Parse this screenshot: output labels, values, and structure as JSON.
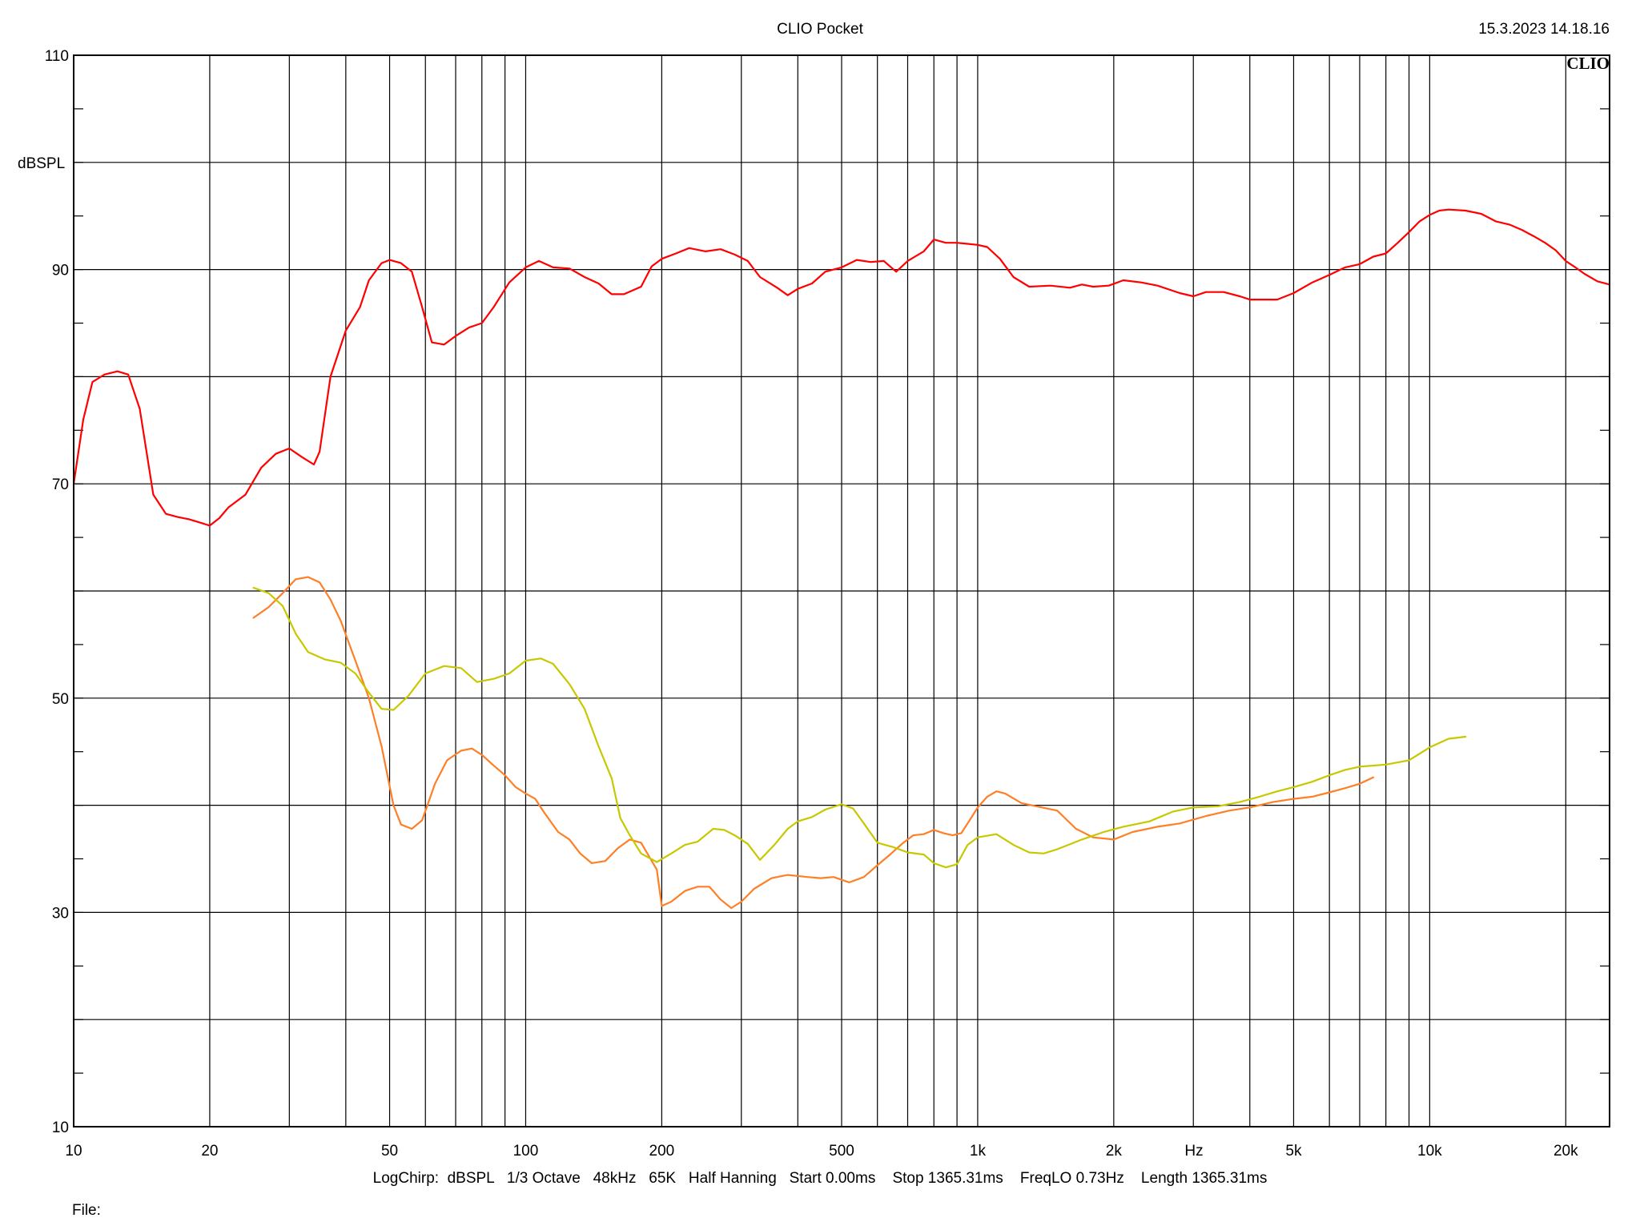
{
  "header": {
    "title": "CLIO Pocket",
    "timestamp": "15.3.2023 14.18.16",
    "brand": "CLIO"
  },
  "footer": {
    "settings": "LogChirp:  dBSPL   1/3 Octave   48kHz   65K   Half Hanning   Start 0.00ms    Stop 1365.31ms    FreqLO 0.73Hz    Length 1365.31ms",
    "file_label": "File:"
  },
  "chart_data": {
    "type": "line",
    "title": "CLIO Pocket",
    "xlabel": "Hz",
    "ylabel": "dBSPL",
    "x_scale": "log",
    "xlim": [
      10,
      25000
    ],
    "ylim": [
      10,
      110
    ],
    "x_ticks": [
      {
        "value": 10,
        "label": "10"
      },
      {
        "value": 20,
        "label": "20"
      },
      {
        "value": 50,
        "label": "50"
      },
      {
        "value": 100,
        "label": "100"
      },
      {
        "value": 200,
        "label": "200"
      },
      {
        "value": 500,
        "label": "500"
      },
      {
        "value": 1000,
        "label": "1k"
      },
      {
        "value": 2000,
        "label": "2k"
      },
      {
        "value": 5000,
        "label": "5k"
      },
      {
        "value": 10000,
        "label": "10k"
      },
      {
        "value": 20000,
        "label": "20k"
      }
    ],
    "y_ticks": [
      {
        "value": 10,
        "label": "10"
      },
      {
        "value": 30,
        "label": "30"
      },
      {
        "value": 50,
        "label": "50"
      },
      {
        "value": 70,
        "label": "70"
      },
      {
        "value": 90,
        "label": "90"
      },
      {
        "value": 110,
        "label": "110"
      }
    ],
    "grid": true,
    "legend": "none",
    "series": [
      {
        "color": "#ff0000",
        "points": [
          [
            10,
            70
          ],
          [
            10.5,
            76
          ],
          [
            11,
            79.5
          ],
          [
            11.7,
            80.2
          ],
          [
            12.5,
            80.5
          ],
          [
            13.2,
            80.2
          ],
          [
            14,
            77
          ],
          [
            15,
            69
          ],
          [
            16,
            67.2
          ],
          [
            17,
            66.9
          ],
          [
            18,
            66.7
          ],
          [
            19,
            66.4
          ],
          [
            20,
            66.1
          ],
          [
            21,
            66.8
          ],
          [
            22,
            67.8
          ],
          [
            24,
            69
          ],
          [
            26,
            71.5
          ],
          [
            28,
            72.8
          ],
          [
            30,
            73.3
          ],
          [
            32,
            72.5
          ],
          [
            34,
            71.8
          ],
          [
            35,
            73
          ],
          [
            37,
            80
          ],
          [
            40,
            84.3
          ],
          [
            43,
            86.5
          ],
          [
            45,
            89
          ],
          [
            48,
            90.6
          ],
          [
            50,
            90.9
          ],
          [
            53,
            90.6
          ],
          [
            56,
            89.8
          ],
          [
            59,
            86.5
          ],
          [
            62,
            83.2
          ],
          [
            66,
            83
          ],
          [
            70,
            83.8
          ],
          [
            75,
            84.6
          ],
          [
            80,
            85
          ],
          [
            85,
            86.5
          ],
          [
            92,
            88.8
          ],
          [
            100,
            90.2
          ],
          [
            107,
            90.8
          ],
          [
            115,
            90.2
          ],
          [
            125,
            90.1
          ],
          [
            135,
            89.3
          ],
          [
            145,
            88.7
          ],
          [
            155,
            87.7
          ],
          [
            165,
            87.7
          ],
          [
            180,
            88.4
          ],
          [
            190,
            90.3
          ],
          [
            200,
            91
          ],
          [
            215,
            91.5
          ],
          [
            230,
            92
          ],
          [
            250,
            91.7
          ],
          [
            270,
            91.9
          ],
          [
            290,
            91.4
          ],
          [
            310,
            90.8
          ],
          [
            330,
            89.3
          ],
          [
            360,
            88.3
          ],
          [
            380,
            87.6
          ],
          [
            400,
            88.2
          ],
          [
            430,
            88.7
          ],
          [
            460,
            89.8
          ],
          [
            500,
            90.2
          ],
          [
            540,
            90.9
          ],
          [
            580,
            90.7
          ],
          [
            620,
            90.8
          ],
          [
            660,
            89.8
          ],
          [
            700,
            90.8
          ],
          [
            760,
            91.7
          ],
          [
            800,
            92.8
          ],
          [
            850,
            92.5
          ],
          [
            900,
            92.5
          ],
          [
            950,
            92.4
          ],
          [
            1000,
            92.3
          ],
          [
            1050,
            92.1
          ],
          [
            1120,
            91
          ],
          [
            1200,
            89.3
          ],
          [
            1300,
            88.4
          ],
          [
            1450,
            88.5
          ],
          [
            1600,
            88.3
          ],
          [
            1700,
            88.6
          ],
          [
            1800,
            88.4
          ],
          [
            1950,
            88.5
          ],
          [
            2100,
            89
          ],
          [
            2300,
            88.8
          ],
          [
            2500,
            88.5
          ],
          [
            2800,
            87.8
          ],
          [
            3000,
            87.5
          ],
          [
            3200,
            87.9
          ],
          [
            3500,
            87.9
          ],
          [
            3800,
            87.5
          ],
          [
            4000,
            87.2
          ],
          [
            4300,
            87.2
          ],
          [
            4600,
            87.2
          ],
          [
            5000,
            87.8
          ],
          [
            5500,
            88.8
          ],
          [
            6000,
            89.5
          ],
          [
            6500,
            90.2
          ],
          [
            7000,
            90.5
          ],
          [
            7500,
            91.2
          ],
          [
            8000,
            91.5
          ],
          [
            8500,
            92.5
          ],
          [
            9000,
            93.5
          ],
          [
            9500,
            94.5
          ],
          [
            10000,
            95.1
          ],
          [
            10500,
            95.5
          ],
          [
            11000,
            95.6
          ],
          [
            12000,
            95.5
          ],
          [
            13000,
            95.2
          ],
          [
            14000,
            94.5
          ],
          [
            15000,
            94.2
          ],
          [
            16000,
            93.7
          ],
          [
            17000,
            93.1
          ],
          [
            18000,
            92.5
          ],
          [
            19000,
            91.8
          ],
          [
            20000,
            90.8
          ],
          [
            21000,
            90.2
          ],
          [
            22000,
            89.6
          ],
          [
            23500,
            88.9
          ],
          [
            25000,
            88.6
          ]
        ]
      },
      {
        "color": "#ff7f27",
        "points": [
          [
            25,
            57.5
          ],
          [
            27,
            58.5
          ],
          [
            29,
            59.8
          ],
          [
            31,
            61.1
          ],
          [
            33,
            61.3
          ],
          [
            35,
            60.8
          ],
          [
            37,
            59.2
          ],
          [
            39,
            57.2
          ],
          [
            42,
            53.5
          ],
          [
            45,
            50
          ],
          [
            48,
            45.5
          ],
          [
            51,
            40
          ],
          [
            53,
            38.2
          ],
          [
            56,
            37.8
          ],
          [
            59,
            38.6
          ],
          [
            63,
            42
          ],
          [
            67,
            44.2
          ],
          [
            72,
            45.1
          ],
          [
            76,
            45.3
          ],
          [
            80,
            44.7
          ],
          [
            85,
            43.7
          ],
          [
            90,
            42.8
          ],
          [
            95,
            41.7
          ],
          [
            100,
            41.1
          ],
          [
            105,
            40.6
          ],
          [
            110,
            39.3
          ],
          [
            118,
            37.5
          ],
          [
            125,
            36.8
          ],
          [
            132,
            35.5
          ],
          [
            140,
            34.6
          ],
          [
            150,
            34.8
          ],
          [
            160,
            36
          ],
          [
            170,
            36.8
          ],
          [
            180,
            36.5
          ],
          [
            195,
            34
          ],
          [
            200,
            30.6
          ],
          [
            210,
            31
          ],
          [
            225,
            32
          ],
          [
            240,
            32.4
          ],
          [
            255,
            32.4
          ],
          [
            270,
            31.2
          ],
          [
            285,
            30.4
          ],
          [
            300,
            31
          ],
          [
            320,
            32.2
          ],
          [
            350,
            33.2
          ],
          [
            380,
            33.5
          ],
          [
            420,
            33.3
          ],
          [
            450,
            33.2
          ],
          [
            480,
            33.3
          ],
          [
            520,
            32.8
          ],
          [
            560,
            33.3
          ],
          [
            600,
            34.4
          ],
          [
            640,
            35.4
          ],
          [
            680,
            36.4
          ],
          [
            720,
            37.2
          ],
          [
            760,
            37.3
          ],
          [
            800,
            37.7
          ],
          [
            840,
            37.4
          ],
          [
            880,
            37.2
          ],
          [
            920,
            37.4
          ],
          [
            960,
            38.6
          ],
          [
            1000,
            39.8
          ],
          [
            1050,
            40.8
          ],
          [
            1100,
            41.3
          ],
          [
            1150,
            41.1
          ],
          [
            1250,
            40.2
          ],
          [
            1350,
            39.9
          ],
          [
            1500,
            39.5
          ],
          [
            1650,
            37.8
          ],
          [
            1800,
            37
          ],
          [
            2000,
            36.8
          ],
          [
            2200,
            37.5
          ],
          [
            2500,
            38
          ],
          [
            2800,
            38.3
          ],
          [
            3200,
            39
          ],
          [
            3600,
            39.5
          ],
          [
            4000,
            39.8
          ],
          [
            4500,
            40.3
          ],
          [
            5000,
            40.6
          ],
          [
            5500,
            40.8
          ],
          [
            6000,
            41.2
          ],
          [
            6500,
            41.6
          ],
          [
            7000,
            42
          ],
          [
            7500,
            42.6
          ]
        ]
      },
      {
        "color": "#c8c800",
        "points": [
          [
            25,
            60.3
          ],
          [
            27,
            59.8
          ],
          [
            29,
            58.6
          ],
          [
            31,
            56
          ],
          [
            33,
            54.3
          ],
          [
            36,
            53.6
          ],
          [
            39,
            53.3
          ],
          [
            42,
            52.3
          ],
          [
            45,
            50.5
          ],
          [
            48,
            49
          ],
          [
            51,
            48.9
          ],
          [
            55,
            50.2
          ],
          [
            60,
            52.3
          ],
          [
            66,
            53
          ],
          [
            72,
            52.8
          ],
          [
            78,
            51.5
          ],
          [
            85,
            51.8
          ],
          [
            92,
            52.3
          ],
          [
            100,
            53.5
          ],
          [
            108,
            53.7
          ],
          [
            115,
            53.2
          ],
          [
            125,
            51.3
          ],
          [
            135,
            49
          ],
          [
            145,
            45.5
          ],
          [
            155,
            42.5
          ],
          [
            162,
            38.8
          ],
          [
            170,
            37.2
          ],
          [
            180,
            35.5
          ],
          [
            195,
            34.7
          ],
          [
            210,
            35.5
          ],
          [
            225,
            36.3
          ],
          [
            240,
            36.6
          ],
          [
            260,
            37.8
          ],
          [
            275,
            37.7
          ],
          [
            290,
            37.2
          ],
          [
            310,
            36.4
          ],
          [
            330,
            34.9
          ],
          [
            355,
            36.3
          ],
          [
            380,
            37.8
          ],
          [
            400,
            38.5
          ],
          [
            430,
            38.9
          ],
          [
            460,
            39.6
          ],
          [
            500,
            40.1
          ],
          [
            530,
            39.7
          ],
          [
            560,
            38.3
          ],
          [
            600,
            36.5
          ],
          [
            650,
            36.1
          ],
          [
            700,
            35.6
          ],
          [
            760,
            35.4
          ],
          [
            800,
            34.6
          ],
          [
            850,
            34.2
          ],
          [
            900,
            34.5
          ],
          [
            950,
            36.3
          ],
          [
            1000,
            37
          ],
          [
            1100,
            37.3
          ],
          [
            1200,
            36.3
          ],
          [
            1300,
            35.6
          ],
          [
            1400,
            35.5
          ],
          [
            1500,
            35.9
          ],
          [
            1700,
            36.8
          ],
          [
            1900,
            37.5
          ],
          [
            2100,
            38
          ],
          [
            2400,
            38.5
          ],
          [
            2700,
            39.4
          ],
          [
            3000,
            39.8
          ],
          [
            3400,
            39.9
          ],
          [
            3800,
            40.3
          ],
          [
            4200,
            40.8
          ],
          [
            4600,
            41.3
          ],
          [
            5000,
            41.7
          ],
          [
            5500,
            42.2
          ],
          [
            6000,
            42.8
          ],
          [
            6500,
            43.3
          ],
          [
            7000,
            43.6
          ],
          [
            8000,
            43.8
          ],
          [
            9000,
            44.2
          ],
          [
            10000,
            45.4
          ],
          [
            11000,
            46.2
          ],
          [
            12000,
            46.4
          ]
        ]
      }
    ]
  }
}
